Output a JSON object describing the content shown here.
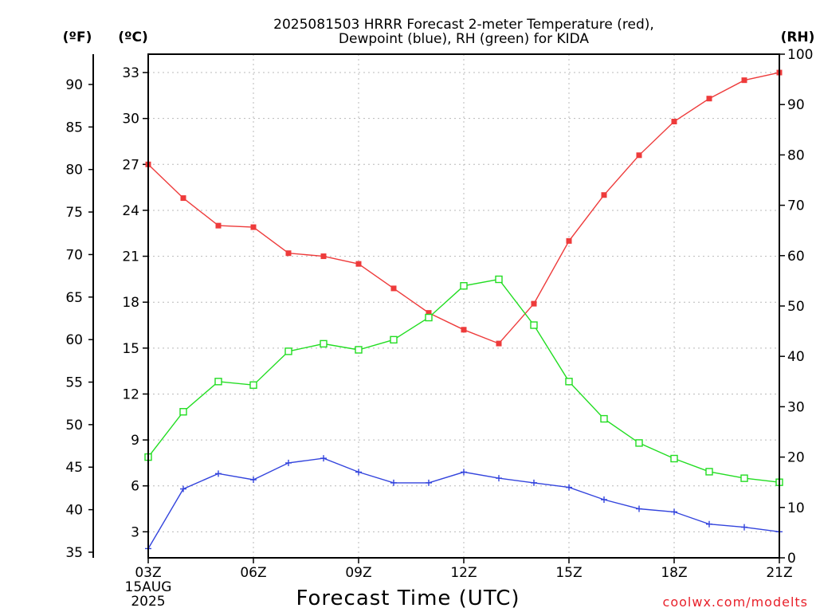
{
  "chart_data": {
    "type": "line",
    "title_line1": "2025081503 HRRR Forecast 2-meter Temperature (red),",
    "title_line2": "Dewpoint (blue), RH (green) for KIDA",
    "xlabel": "Forecast Time (UTC)",
    "credit": "coolwx.com/modelts",
    "x": [
      3,
      4,
      5,
      6,
      7,
      8,
      9,
      10,
      11,
      12,
      13,
      14,
      15,
      16,
      17,
      18,
      19,
      20,
      21
    ],
    "xlim": [
      3,
      21
    ],
    "x_ticks": [
      {
        "value": 3,
        "label": "03Z",
        "sub1": "15AUG",
        "sub2": "2025"
      },
      {
        "value": 6,
        "label": "06Z",
        "sub1": "",
        "sub2": ""
      },
      {
        "value": 9,
        "label": "09Z",
        "sub1": "",
        "sub2": ""
      },
      {
        "value": 12,
        "label": "12Z",
        "sub1": "",
        "sub2": ""
      },
      {
        "value": 15,
        "label": "15Z",
        "sub1": "",
        "sub2": ""
      },
      {
        "value": 18,
        "label": "18Z",
        "sub1": "",
        "sub2": ""
      },
      {
        "value": 21,
        "label": "21Z",
        "sub1": "",
        "sub2": ""
      }
    ],
    "axes": {
      "fahrenheit": {
        "unit_label": "(ºF)",
        "ticks": [
          35,
          40,
          45,
          50,
          55,
          60,
          65,
          70,
          75,
          80,
          85,
          90
        ]
      },
      "celsius": {
        "unit_label": "(ºC)",
        "ylim": [
          1.3,
          34.2
        ],
        "ticks": [
          3,
          6,
          9,
          12,
          15,
          18,
          21,
          24,
          27,
          30,
          33
        ]
      },
      "rh": {
        "unit_label": "(RH)",
        "ylim": [
          0,
          100
        ],
        "ticks": [
          0,
          10,
          20,
          30,
          40,
          50,
          60,
          70,
          80,
          90,
          100
        ]
      }
    },
    "series": [
      {
        "key": "temperature",
        "axis": "celsius",
        "color": "#ee3b3b",
        "marker": "filled-square",
        "values": [
          27.0,
          24.8,
          23.0,
          22.9,
          21.2,
          21.0,
          20.5,
          18.9,
          17.3,
          16.2,
          15.3,
          17.9,
          22.0,
          25.0,
          27.6,
          29.8,
          31.3,
          32.5,
          33.0
        ]
      },
      {
        "key": "dewpoint",
        "axis": "celsius",
        "color": "#3344dd",
        "marker": "plus",
        "values": [
          1.9,
          5.8,
          6.8,
          6.4,
          7.5,
          7.8,
          6.9,
          6.2,
          6.2,
          6.9,
          6.5,
          6.2,
          5.9,
          5.1,
          4.5,
          4.3,
          3.5,
          3.3,
          3.0
        ]
      },
      {
        "key": "rh",
        "axis": "rh",
        "color": "#22dd22",
        "marker": "open-square",
        "values": [
          20,
          29,
          35,
          34.3,
          41,
          42.5,
          41.3,
          43.3,
          47.7,
          54,
          55.3,
          46.2,
          35,
          27.6,
          22.8,
          19.7,
          17.1,
          15.8,
          15
        ]
      }
    ]
  }
}
